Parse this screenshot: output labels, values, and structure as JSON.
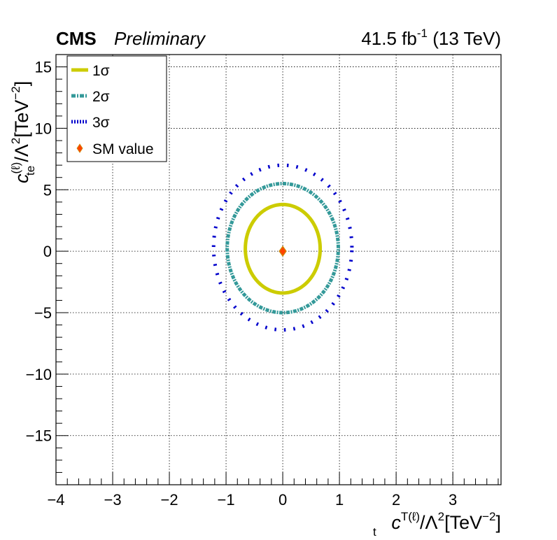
{
  "header": {
    "experiment": "CMS",
    "status": "Preliminary",
    "lumi_value": "41.5 fb",
    "lumi_exp": "-1",
    "energy": " (13 TeV)"
  },
  "chart_data": {
    "type": "scatter",
    "xlabel": {
      "var": "c",
      "sub": "t",
      "sup": "T(ℓ)",
      "rest": "/Λ",
      "sq": "2",
      "unit_open": "[TeV",
      "unit_exp": "−2",
      "unit_close": "]"
    },
    "ylabel": {
      "var": "c",
      "sub": "te",
      "sup": "(ℓ)",
      "rest": "/Λ",
      "sq": "2",
      "unit_open": "[TeV",
      "unit_exp": "−2",
      "unit_close": "]"
    },
    "xlim": [
      -4,
      3.85
    ],
    "ylim": [
      -19,
      16
    ],
    "xticks": [
      -4,
      -3,
      -2,
      -1,
      0,
      1,
      2,
      3
    ],
    "xtick_labels": [
      "−4",
      "−3",
      "−2",
      "−1",
      "0",
      "1",
      "2",
      "3"
    ],
    "yticks": [
      -15,
      -10,
      -5,
      0,
      5,
      10,
      15
    ],
    "ytick_labels": [
      "−15",
      "−10",
      "−5",
      "0",
      "5",
      "10",
      "15"
    ],
    "grid": true,
    "legend_position": "top-left",
    "series": [
      {
        "name": "1σ",
        "style": "solid",
        "color": "#cccc00",
        "contour": {
          "x_min": -0.66,
          "x_max": 0.66,
          "y_min": -3.4,
          "y_max": 3.8
        }
      },
      {
        "name": "2σ",
        "style": "dash-dot",
        "color": "#339999",
        "contour": {
          "x_min": -0.98,
          "x_max": 0.98,
          "y_min": -5.0,
          "y_max": 5.5
        }
      },
      {
        "name": "3σ",
        "style": "dotted",
        "color": "#0000cc",
        "contour": {
          "x_min": -1.22,
          "x_max": 1.22,
          "y_min": -6.4,
          "y_max": 7.0
        }
      }
    ],
    "sm_point": {
      "name": "SM value",
      "x": 0,
      "y": 0,
      "color": "#ff4400",
      "edge": "#cc8800"
    }
  }
}
